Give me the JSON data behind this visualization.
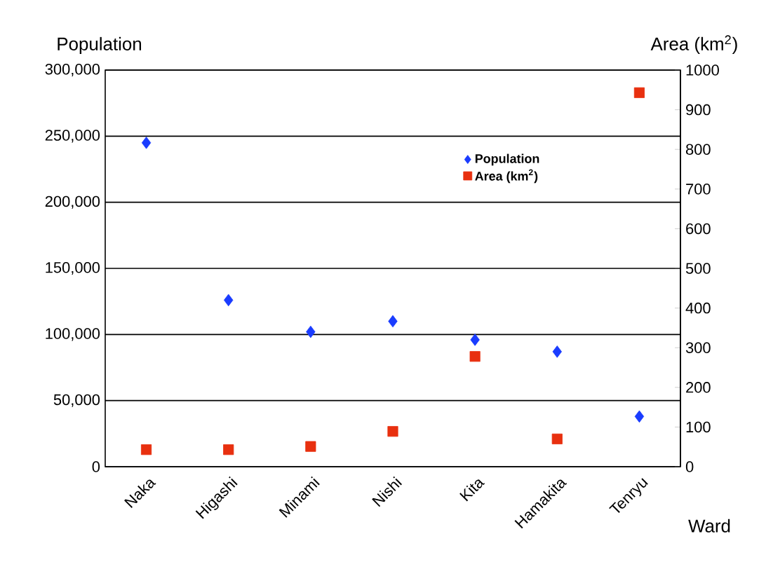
{
  "chart_data": {
    "type": "scatter",
    "xlabel": "Ward",
    "ylabel": "Population",
    "y2label": "Area (km$^{2}$)",
    "categories": [
      "Naka",
      "Higashi",
      "Minami",
      "Nishi",
      "Kita",
      "Hamakita",
      "Tenryu"
    ],
    "series": [
      {
        "name": "Population",
        "color": "#1a3cff",
        "marker": "diamond",
        "values": [
          245000,
          126000,
          102000,
          110000,
          96000,
          87000,
          38000
        ]
      },
      {
        "name": "Area (km$^{2}$)",
        "color": "#e8300f",
        "marker": "square",
        "axis": "y2",
        "values": [
          43,
          43,
          51,
          89,
          278,
          70,
          943
        ]
      }
    ],
    "ylim": [
      0,
      300000
    ],
    "yticks": [
      {
        "value": 0,
        "label": "0"
      },
      {
        "value": 50000,
        "label": "50,000"
      },
      {
        "value": 100000,
        "label": "100,000"
      },
      {
        "value": 150000,
        "label": "150,000"
      },
      {
        "value": 200000,
        "label": "200,000"
      },
      {
        "value": 250000,
        "label": "250,000"
      },
      {
        "value": 300000,
        "label": "300,000"
      }
    ],
    "y2lim": [
      0,
      1000
    ],
    "y2ticks": [
      0,
      100,
      200,
      300,
      400,
      500,
      600,
      700,
      800,
      900,
      1000
    ],
    "grid": "y",
    "legend": "top right"
  }
}
